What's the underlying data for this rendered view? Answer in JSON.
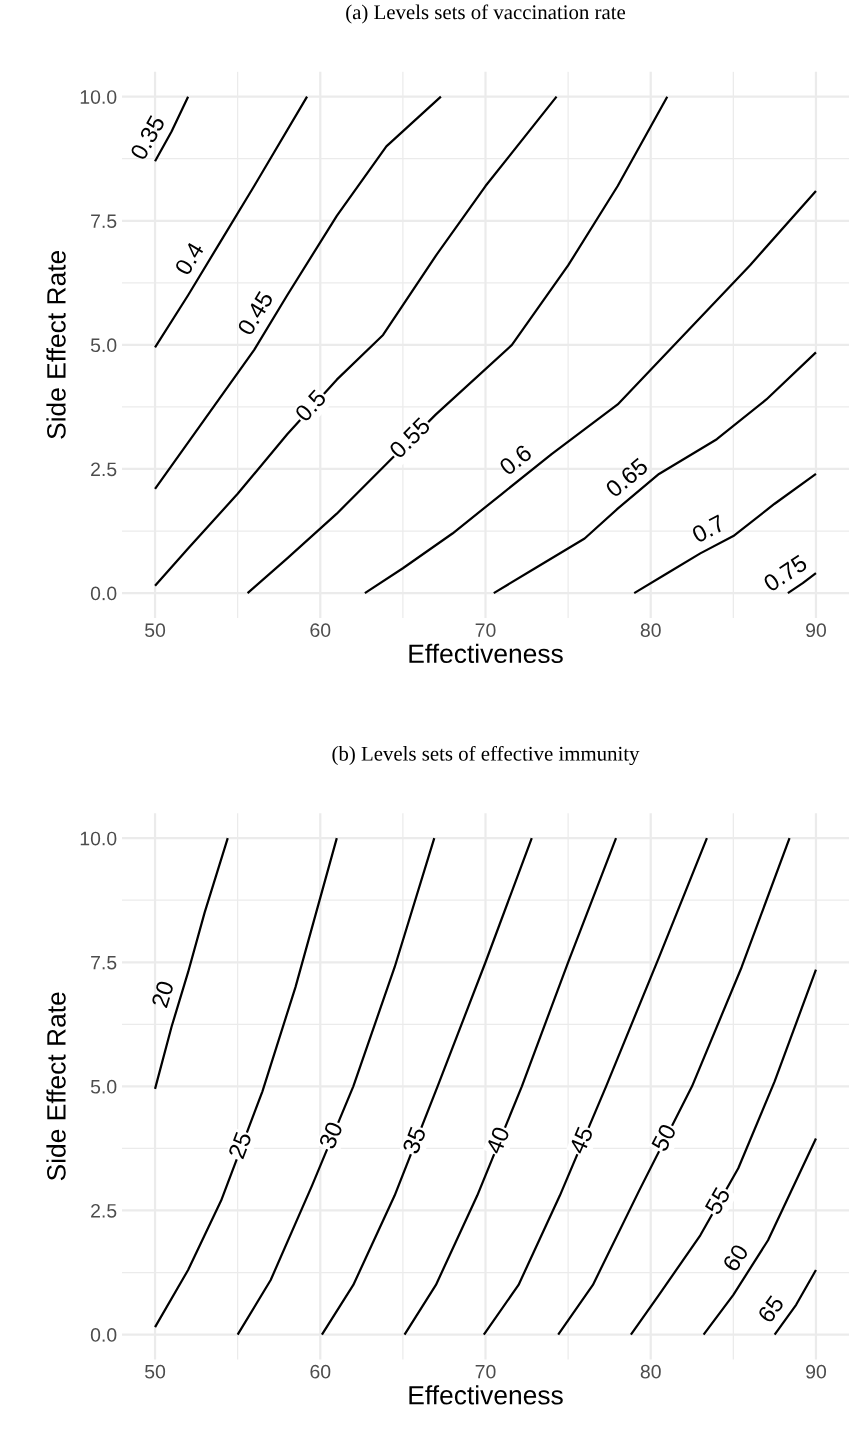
{
  "chart_data": [
    {
      "type": "line",
      "title": "(a) Levels sets of vaccination rate",
      "xlabel": "Effectiveness",
      "ylabel": "Side Effect Rate",
      "xlim": [
        48,
        92
      ],
      "ylim": [
        -0.5,
        10.5
      ],
      "xticks": [
        50,
        60,
        70,
        80,
        90
      ],
      "yticks": [
        {
          "value": 0,
          "label": "0.0"
        },
        {
          "value": 2.5,
          "label": "2.5"
        },
        {
          "value": 5,
          "label": "5.0"
        },
        {
          "value": 7.5,
          "label": "7.5"
        },
        {
          "value": 10,
          "label": "10.0"
        }
      ],
      "grid": true,
      "legend": false,
      "series": [
        {
          "name": "0.35",
          "color": "#000000",
          "x": [
            50,
            51,
            52
          ],
          "values": [
            8.7,
            9.3,
            10
          ]
        },
        {
          "name": "0.4",
          "color": "#000000",
          "x": [
            50,
            52,
            54,
            56,
            59.2
          ],
          "values": [
            4.95,
            6.0,
            7.1,
            8.2,
            10
          ]
        },
        {
          "name": "0.45",
          "color": "#000000",
          "x": [
            50,
            53,
            56,
            58,
            61,
            64,
            67.3
          ],
          "values": [
            2.1,
            3.5,
            4.9,
            6.0,
            7.6,
            9.0,
            10
          ]
        },
        {
          "name": "0.5",
          "color": "#000000",
          "x": [
            50,
            52,
            55,
            58,
            61,
            63.8,
            67,
            70,
            74.3
          ],
          "values": [
            0.15,
            0.9,
            2.0,
            3.2,
            4.3,
            5.2,
            6.8,
            8.2,
            10
          ]
        },
        {
          "name": "0.55",
          "color": "#000000",
          "x": [
            55.6,
            58,
            61,
            64,
            67,
            71.6,
            75,
            78,
            81
          ],
          "values": [
            0,
            0.7,
            1.6,
            2.6,
            3.6,
            5.0,
            6.6,
            8.2,
            10
          ]
        },
        {
          "name": "0.6",
          "color": "#000000",
          "x": [
            62.7,
            65,
            68,
            71,
            74,
            78,
            82,
            86,
            90
          ],
          "values": [
            0,
            0.5,
            1.2,
            2.0,
            2.8,
            3.8,
            5.2,
            6.6,
            8.1
          ]
        },
        {
          "name": "0.65",
          "color": "#000000",
          "x": [
            70.5,
            73,
            76,
            78,
            80.5,
            84,
            87,
            90
          ],
          "values": [
            0,
            0.5,
            1.1,
            1.7,
            2.4,
            3.1,
            3.9,
            4.85
          ]
        },
        {
          "name": "0.7",
          "color": "#000000",
          "x": [
            79,
            81,
            83,
            85,
            87.5,
            90
          ],
          "values": [
            0,
            0.4,
            0.8,
            1.15,
            1.8,
            2.4
          ]
        },
        {
          "name": "0.75",
          "color": "#000000",
          "x": [
            88.3,
            89.2,
            90
          ],
          "values": [
            0,
            0.2,
            0.4
          ]
        }
      ]
    },
    {
      "type": "line",
      "title": "(b) Levels sets of effective immunity",
      "xlabel": "Effectiveness",
      "ylabel": "Side Effect Rate",
      "xlim": [
        48,
        92
      ],
      "ylim": [
        -0.5,
        10.5
      ],
      "xticks": [
        50,
        60,
        70,
        80,
        90
      ],
      "yticks": [
        {
          "value": 0,
          "label": "0.0"
        },
        {
          "value": 2.5,
          "label": "2.5"
        },
        {
          "value": 5,
          "label": "5.0"
        },
        {
          "value": 7.5,
          "label": "7.5"
        },
        {
          "value": 10,
          "label": "10.0"
        }
      ],
      "grid": true,
      "legend": false,
      "series": [
        {
          "name": "20",
          "color": "#000000",
          "x": [
            50,
            51,
            52,
            53,
            54.4
          ],
          "values": [
            4.95,
            6.2,
            7.3,
            8.5,
            10
          ]
        },
        {
          "name": "25",
          "color": "#000000",
          "x": [
            50,
            52,
            54,
            56.5,
            58.5,
            61
          ],
          "values": [
            0.15,
            1.3,
            2.7,
            4.9,
            7.0,
            10
          ]
        },
        {
          "name": "30",
          "color": "#000000",
          "x": [
            55,
            57,
            59.5,
            62,
            64.5,
            66.9
          ],
          "values": [
            0,
            1.1,
            3.0,
            5.0,
            7.4,
            10
          ]
        },
        {
          "name": "35",
          "color": "#000000",
          "x": [
            60.1,
            62,
            64.5,
            67.1,
            70,
            72.8
          ],
          "values": [
            0,
            1.0,
            2.8,
            5.0,
            7.5,
            10
          ]
        },
        {
          "name": "40",
          "color": "#000000",
          "x": [
            65.1,
            67,
            69.5,
            72.2,
            75,
            77.9
          ],
          "values": [
            0,
            1.0,
            2.8,
            5.0,
            7.5,
            10
          ]
        },
        {
          "name": "45",
          "color": "#000000",
          "x": [
            69.9,
            72,
            74.5,
            77.3,
            80.5,
            83.4
          ],
          "values": [
            0,
            1.0,
            2.8,
            5.0,
            7.6,
            10
          ]
        },
        {
          "name": "50",
          "color": "#000000",
          "x": [
            74.4,
            76.5,
            79.3,
            82.5,
            85.5,
            88.4
          ],
          "values": [
            0,
            1.0,
            2.9,
            5.0,
            7.4,
            10
          ]
        },
        {
          "name": "55",
          "color": "#000000",
          "x": [
            78.8,
            80.5,
            83,
            85.3,
            87.5,
            90
          ],
          "values": [
            0,
            0.8,
            2.0,
            3.35,
            5.1,
            7.35
          ]
        },
        {
          "name": "60",
          "color": "#000000",
          "x": [
            83.2,
            85,
            87.1,
            90
          ],
          "values": [
            0,
            0.8,
            1.9,
            3.95
          ]
        },
        {
          "name": "65",
          "color": "#000000",
          "x": [
            87.5,
            88.8,
            90
          ],
          "values": [
            0,
            0.6,
            1.3
          ]
        }
      ]
    }
  ]
}
